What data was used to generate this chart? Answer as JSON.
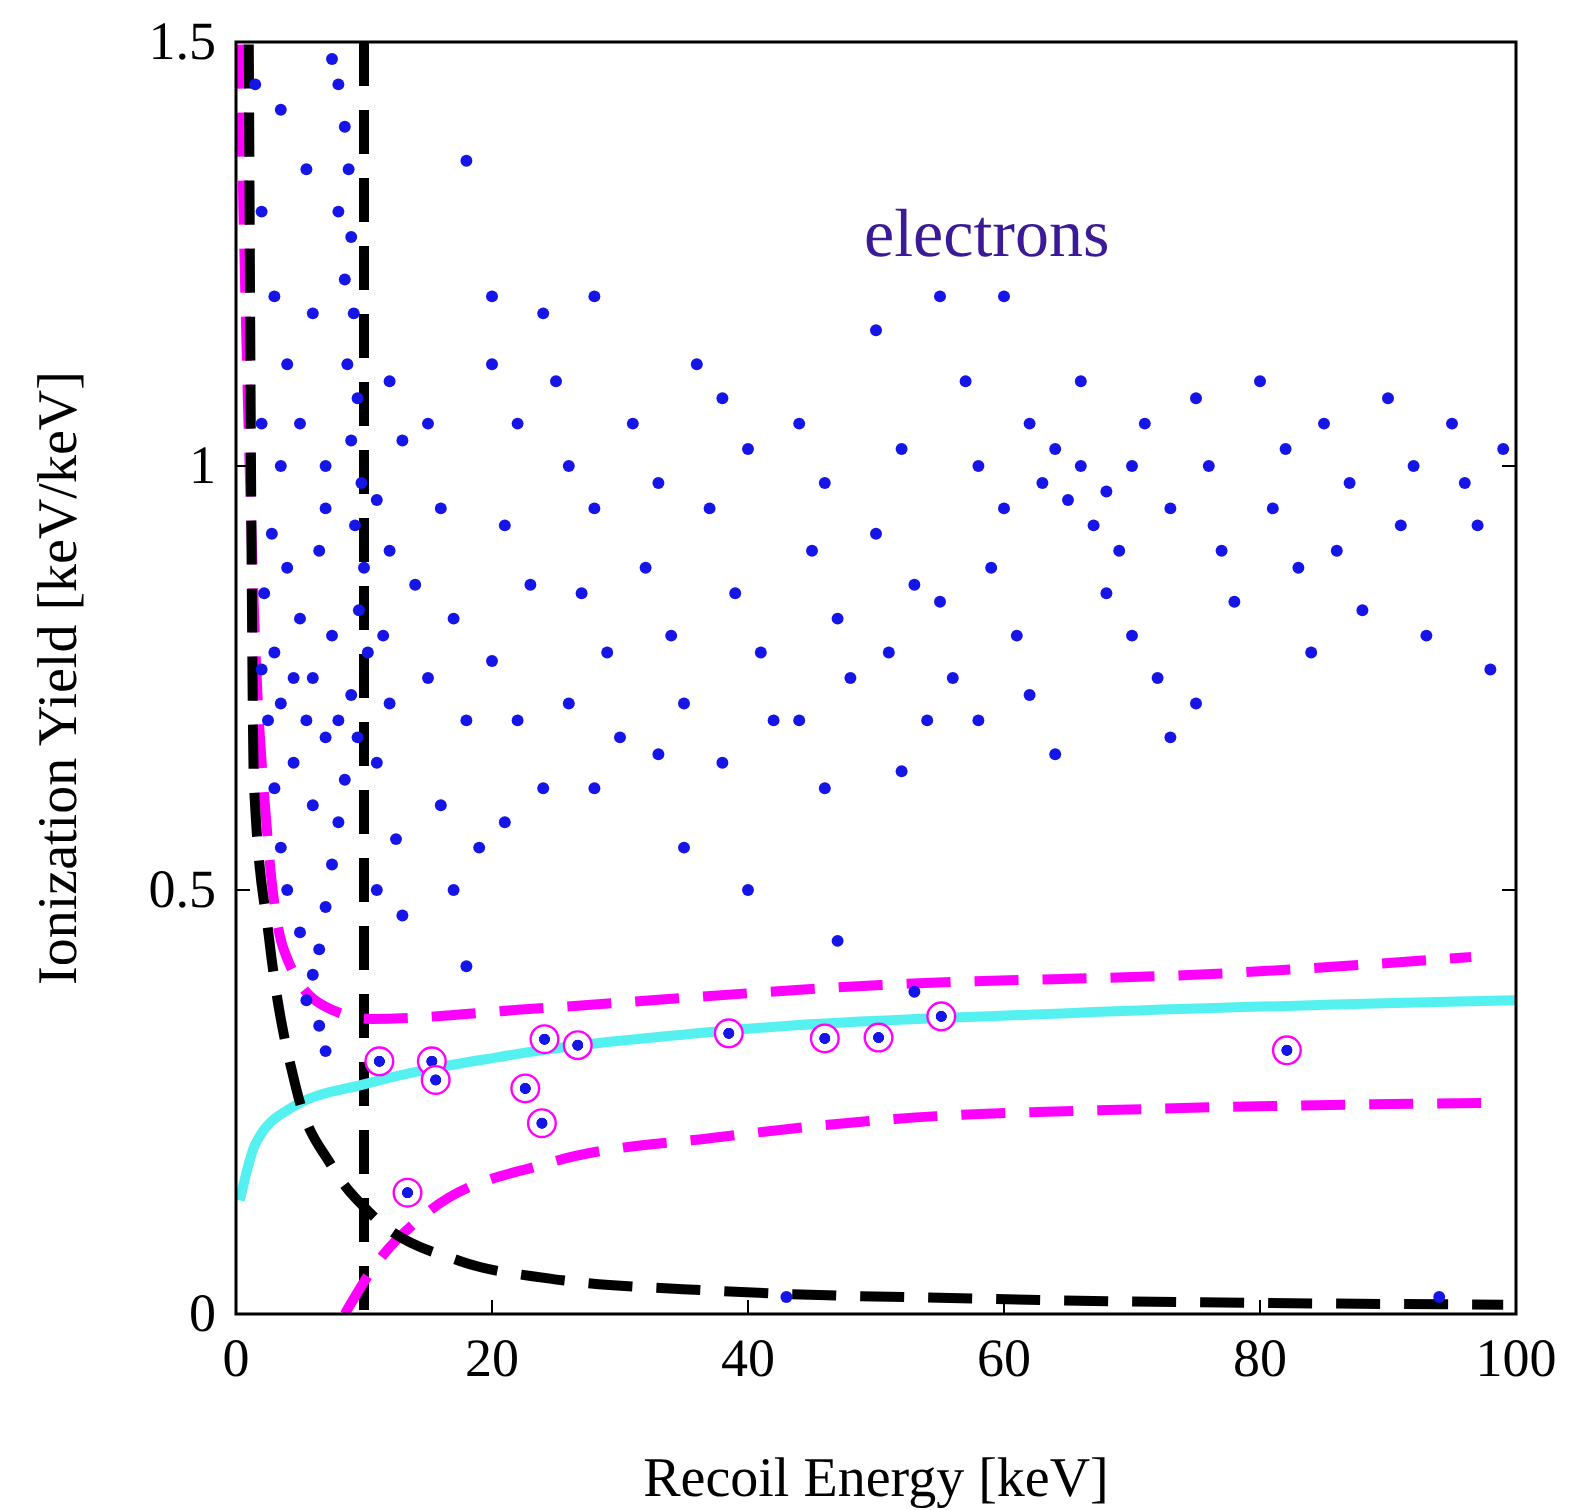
{
  "chart_data": {
    "type": "scatter",
    "xlabel": "Recoil Energy [keV]",
    "ylabel": "Ionization Yield [keV/keV]",
    "xlim": [
      0,
      100
    ],
    "ylim": [
      0,
      1.5
    ],
    "xticks": [
      0,
      20,
      40,
      60,
      80,
      100
    ],
    "yticks": [
      0,
      0.5,
      1,
      1.5
    ],
    "grid": false,
    "annotations": [
      "electrons"
    ],
    "ref_lines": [
      {
        "axis": "x",
        "value": 10,
        "color": "#000000",
        "line_style": "dashed"
      }
    ],
    "series": [
      {
        "color": "#1515e8",
        "marker": "circle",
        "x": [
          7.5,
          8,
          8.5,
          8.8,
          8,
          9,
          8.5,
          9.2,
          8.7,
          9.5,
          9,
          9.8,
          9.3,
          10,
          9.6,
          10.3,
          9,
          9.5,
          8.5,
          8,
          7.5,
          7,
          6.5,
          6,
          5.5,
          6.5,
          7,
          5,
          4,
          3.5,
          3,
          2.5,
          3,
          2.2,
          2.8,
          4,
          5,
          6,
          5.5,
          4.5,
          6.5,
          7,
          5,
          4,
          3,
          2,
          5.5,
          3.5,
          1.5,
          7,
          7.5,
          6,
          8,
          7,
          4.5,
          3.5,
          2,
          6,
          3.5,
          2,
          11,
          12,
          11.5,
          12,
          11,
          12.5,
          11,
          13,
          12,
          13,
          15,
          16,
          14,
          17,
          15,
          18,
          16,
          19,
          17,
          18,
          20,
          22,
          21,
          23,
          20,
          22,
          24,
          21,
          25,
          26,
          28,
          27,
          29,
          26,
          30,
          28,
          18,
          20,
          24,
          28,
          31,
          33,
          32,
          34,
          35,
          33,
          36,
          38,
          40,
          37,
          39,
          41,
          42,
          38,
          35,
          40,
          44,
          46,
          45,
          47,
          48,
          44,
          46,
          47,
          50,
          52,
          50,
          53,
          51,
          54,
          52,
          55,
          56,
          53,
          55,
          57,
          58,
          60,
          59,
          61,
          62,
          63,
          64,
          65,
          66,
          67,
          68,
          69,
          70,
          68,
          70,
          72,
          66,
          71,
          73,
          75,
          76,
          77,
          78,
          75,
          80,
          82,
          81,
          83,
          84,
          85,
          87,
          86,
          88,
          90,
          92,
          91,
          93,
          95,
          96,
          97,
          98,
          99,
          62,
          64,
          58,
          73,
          60,
          43,
          94
        ],
        "values": [
          1.48,
          1.45,
          1.4,
          1.35,
          1.3,
          1.27,
          1.22,
          1.18,
          1.12,
          1.08,
          1.03,
          0.98,
          0.93,
          0.88,
          0.83,
          0.78,
          0.73,
          0.68,
          0.63,
          0.58,
          0.53,
          0.48,
          0.43,
          0.4,
          0.37,
          0.34,
          0.31,
          0.45,
          0.5,
          0.55,
          0.62,
          0.7,
          0.78,
          0.85,
          0.92,
          0.88,
          0.82,
          0.75,
          0.7,
          0.65,
          0.9,
          1,
          1.05,
          1.12,
          1.2,
          1.3,
          1.35,
          1.42,
          1.45,
          0.95,
          0.8,
          0.6,
          0.7,
          0.68,
          0.75,
          0.72,
          0.76,
          1.18,
          1,
          1.05,
          0.96,
          0.9,
          0.8,
          0.72,
          0.65,
          0.56,
          0.5,
          0.47,
          1.1,
          1.03,
          1.05,
          0.95,
          0.86,
          0.82,
          0.75,
          0.7,
          0.6,
          0.55,
          0.5,
          0.41,
          1.12,
          1.05,
          0.93,
          0.86,
          0.77,
          0.7,
          0.62,
          0.58,
          1.1,
          1,
          0.95,
          0.85,
          0.78,
          0.72,
          0.68,
          0.62,
          1.36,
          1.2,
          1.18,
          1.2,
          1.05,
          0.98,
          0.88,
          0.8,
          0.72,
          0.66,
          1.12,
          1.08,
          1.02,
          0.95,
          0.85,
          0.78,
          0.7,
          0.65,
          0.55,
          0.5,
          1.05,
          0.98,
          0.9,
          0.82,
          0.75,
          0.7,
          0.62,
          0.44,
          1.16,
          1.02,
          0.92,
          0.86,
          0.78,
          0.7,
          0.64,
          0.84,
          0.75,
          0.38,
          1.2,
          1.1,
          1,
          0.95,
          0.88,
          0.8,
          1.05,
          0.98,
          1.02,
          0.96,
          1,
          0.93,
          0.97,
          0.9,
          1,
          0.85,
          0.8,
          0.75,
          1.1,
          1.05,
          0.95,
          1.08,
          1,
          0.9,
          0.84,
          0.72,
          1.1,
          1.02,
          0.95,
          0.88,
          0.78,
          1.05,
          0.98,
          0.9,
          0.83,
          1.08,
          1,
          0.93,
          0.8,
          1.05,
          0.98,
          0.93,
          0.76,
          1.02,
          0.73,
          0.66,
          0.7,
          0.68,
          1.2,
          0.02,
          0.02
        ]
      },
      {
        "color": "#ff00ff",
        "marker": "circle",
        "x": [
          11.2,
          15.3,
          15.6,
          22.6,
          24.1,
          23.9,
          26.7,
          13.4,
          38.5,
          46,
          50.2,
          55.1,
          82.1
        ],
        "values": [
          0.298,
          0.298,
          0.276,
          0.266,
          0.324,
          0.225,
          0.317,
          0.143,
          0.331,
          0.325,
          0.326,
          0.351,
          0.311
        ]
      },
      {
        "type": "line",
        "color": "#55f0f0",
        "line_style": "solid",
        "x": [
          0.3,
          1.5,
          4.2,
          10.3,
          20.5,
          38.2,
          65.4,
          100
        ],
        "values": [
          0.134,
          0.2,
          0.242,
          0.272,
          0.303,
          0.334,
          0.355,
          0.37
        ]
      },
      {
        "type": "line",
        "color": "#ff00ff",
        "line_style": "dashed",
        "x": [
          0.3,
          1,
          1.4,
          2.4,
          3.7,
          6.8,
          10.6,
          23.2,
          50.4,
          77.5,
          96.5
        ],
        "values": [
          1.497,
          1.036,
          0.831,
          0.574,
          0.431,
          0.364,
          0.348,
          0.36,
          0.388,
          0.402,
          0.421
        ]
      },
      {
        "type": "line",
        "color": "#ff00ff",
        "line_style": "dashed",
        "x": [
          8.5,
          10.9,
          14.9,
          24.4,
          38,
          51.5,
          71.9,
          97.7
        ],
        "values": [
          0,
          0.058,
          0.119,
          0.178,
          0.209,
          0.23,
          0.242,
          0.249
        ]
      },
      {
        "type": "line",
        "color": "#000000",
        "line_style": "dashed",
        "x": [
          1,
          1.2,
          1.4,
          2.6,
          4.7,
          7.5,
          10.9,
          17.6,
          24.4,
          38,
          58.3,
          99
        ],
        "values": [
          1.497,
          0.933,
          0.626,
          0.441,
          0.266,
          0.174,
          0.113,
          0.062,
          0.042,
          0.027,
          0.018,
          0.011
        ]
      }
    ]
  }
}
